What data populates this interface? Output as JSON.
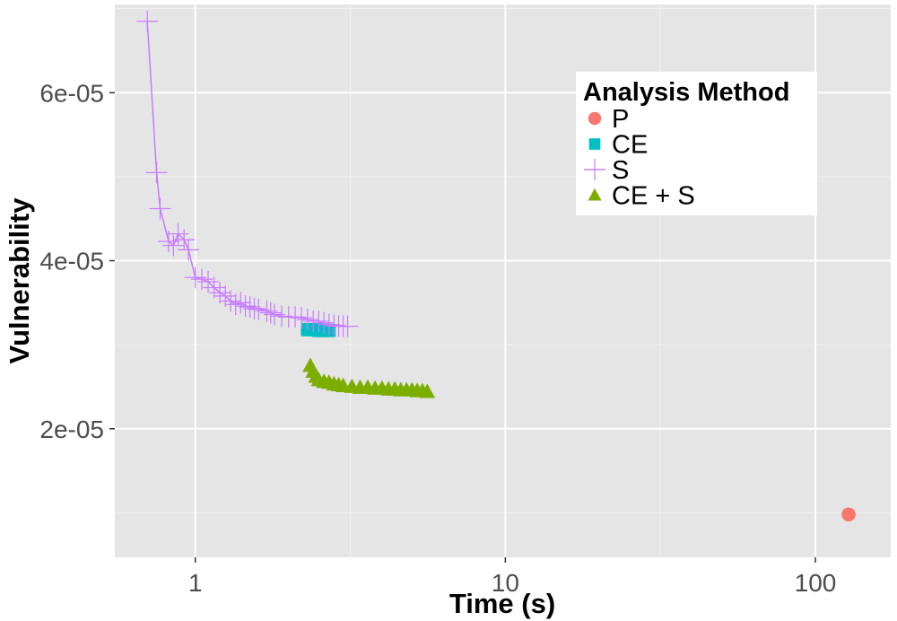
{
  "chart_data": {
    "type": "scatter",
    "xlabel": "Time (s)",
    "ylabel": "Vulnerability",
    "x_scale": "log10",
    "xlim": [
      0.55,
      175
    ],
    "ylim": [
      4.7e-06,
      7.05e-05
    ],
    "x_ticks": [
      1,
      10,
      100
    ],
    "x_tick_labels": [
      "1",
      "10",
      "100"
    ],
    "y_ticks": [
      2e-05,
      4e-05,
      6e-05
    ],
    "y_tick_labels": [
      "2e-05",
      "4e-05",
      "6e-05"
    ],
    "grid": true,
    "legend": {
      "title": "Analysis Method",
      "position": "top-right"
    },
    "series": [
      {
        "name": "P",
        "marker": "circle",
        "color": "#F8766D",
        "x": [
          128
        ],
        "y": [
          9.8e-06
        ]
      },
      {
        "name": "CE",
        "marker": "square",
        "color": "#00BFC4",
        "x": [
          2.3,
          2.35,
          2.4,
          2.45,
          2.5,
          2.55,
          2.6,
          2.65,
          2.7
        ],
        "y": [
          3.18e-05,
          3.18e-05,
          3.18e-05,
          3.18e-05,
          3.17e-05,
          3.17e-05,
          3.17e-05,
          3.17e-05,
          3.17e-05
        ]
      },
      {
        "name": "S",
        "marker": "plus",
        "color": "#C77CFF",
        "connected": true,
        "x": [
          0.7,
          0.75,
          0.77,
          0.82,
          0.85,
          0.88,
          0.92,
          0.95,
          1.0,
          1.05,
          1.1,
          1.15,
          1.2,
          1.25,
          1.3,
          1.35,
          1.4,
          1.45,
          1.5,
          1.55,
          1.6,
          1.7,
          1.75,
          1.8,
          1.9,
          2.0,
          2.1,
          2.2,
          2.3,
          2.4,
          2.5,
          2.6,
          2.7,
          2.8,
          2.9,
          3.0,
          3.1
        ],
        "y": [
          6.85e-05,
          5.05e-05,
          4.62e-05,
          4.23e-05,
          4.18e-05,
          4.32e-05,
          4.25e-05,
          4.13e-05,
          3.8e-05,
          3.78e-05,
          3.75e-05,
          3.68e-05,
          3.62e-05,
          3.58e-05,
          3.52e-05,
          3.48e-05,
          3.5e-05,
          3.46e-05,
          3.45e-05,
          3.43e-05,
          3.42e-05,
          3.4e-05,
          3.38e-05,
          3.36e-05,
          3.34e-05,
          3.33e-05,
          3.33e-05,
          3.32e-05,
          3.3e-05,
          3.28e-05,
          3.28e-05,
          3.26e-05,
          3.24e-05,
          3.23e-05,
          3.22e-05,
          3.22e-05,
          3.22e-05
        ]
      },
      {
        "name": "CE + S",
        "marker": "triangle",
        "color": "#7CAE00",
        "x": [
          2.35,
          2.4,
          2.45,
          2.5,
          2.6,
          2.7,
          2.8,
          2.9,
          3.0,
          3.2,
          3.4,
          3.6,
          3.8,
          4.0,
          4.2,
          4.4,
          4.6,
          4.8,
          5.0,
          5.2,
          5.4,
          5.6
        ],
        "y": [
          2.75e-05,
          2.68e-05,
          2.62e-05,
          2.58e-05,
          2.56e-05,
          2.55e-05,
          2.53e-05,
          2.52e-05,
          2.51e-05,
          2.5e-05,
          2.49e-05,
          2.49e-05,
          2.48e-05,
          2.48e-05,
          2.47e-05,
          2.47e-05,
          2.46e-05,
          2.46e-05,
          2.46e-05,
          2.45e-05,
          2.45e-05,
          2.44e-05
        ]
      }
    ]
  }
}
